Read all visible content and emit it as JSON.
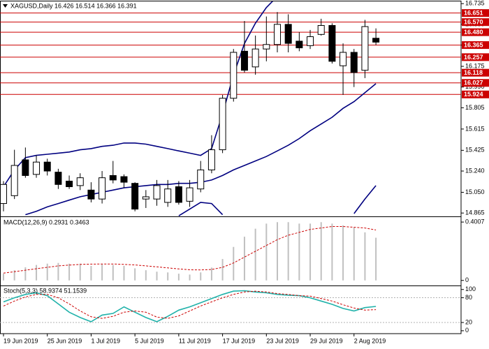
{
  "chart_data": [
    {
      "type": "candlestick",
      "title": "XAGUSD,Daily  16.426 16.514 16.366 16.391",
      "open": [
        14.95,
        15.02,
        15.34,
        15.21,
        15.32,
        15.23,
        15.15,
        15.11,
        15.07,
        14.99,
        15.2,
        15.19,
        15.13,
        14.99,
        14.99,
        14.96,
        15.1,
        14.97,
        15.08,
        15.25,
        15.43,
        15.89,
        16.31,
        16.17,
        16.33,
        16.37,
        16.55,
        16.4,
        16.36,
        16.46,
        16.54,
        16.18,
        16.3,
        16.14,
        16.426
      ],
      "high": [
        15.15,
        15.43,
        15.45,
        15.38,
        15.35,
        15.26,
        15.2,
        15.22,
        15.14,
        15.24,
        15.33,
        15.21,
        15.14,
        15.07,
        15.16,
        15.16,
        15.15,
        15.16,
        15.33,
        15.56,
        15.92,
        16.33,
        16.58,
        16.45,
        16.62,
        16.66,
        16.64,
        16.48,
        16.5,
        16.6,
        16.56,
        16.38,
        16.33,
        16.59,
        16.514
      ],
      "low": [
        14.88,
        14.99,
        15.18,
        15.18,
        15.2,
        15.08,
        15.08,
        15.07,
        14.96,
        14.95,
        15.13,
        15.09,
        14.88,
        14.91,
        14.93,
        14.92,
        14.94,
        14.92,
        15.05,
        15.22,
        15.4,
        15.86,
        16.12,
        16.1,
        16.22,
        16.3,
        16.3,
        16.31,
        16.33,
        16.45,
        16.2,
        15.92,
        15.99,
        16.07,
        16.366
      ],
      "close": [
        15.12,
        15.29,
        15.2,
        15.32,
        15.24,
        15.12,
        15.1,
        15.18,
        14.99,
        15.18,
        15.16,
        15.14,
        14.9,
        15.01,
        15.11,
        15.08,
        14.96,
        15.09,
        15.25,
        15.43,
        15.89,
        16.3,
        16.14,
        16.33,
        16.37,
        16.55,
        16.38,
        16.34,
        16.44,
        16.54,
        16.22,
        16.3,
        16.12,
        16.53,
        16.391
      ],
      "up_color": "#ffffff",
      "down_color": "#000000",
      "outline_color": "#000000",
      "series": [
        {
          "color": "#000080",
          "values": [
            15.1,
            15.25,
            15.36,
            15.38,
            15.39,
            15.4,
            15.41,
            15.43,
            15.44,
            15.46,
            15.47,
            15.49,
            15.49,
            15.48,
            15.46,
            15.44,
            15.42,
            15.4,
            15.38,
            15.44,
            15.75,
            16.1,
            16.38,
            16.56,
            16.7,
            16.8,
            null,
            null,
            null,
            null,
            null,
            null,
            null,
            null,
            null
          ]
        },
        {
          "color": "#000080",
          "values": [
            null,
            null,
            14.85,
            14.88,
            14.92,
            14.95,
            14.98,
            15.01,
            15.03,
            15.05,
            15.07,
            15.09,
            15.1,
            15.11,
            15.12,
            15.12,
            15.13,
            15.13,
            15.14,
            15.16,
            15.2,
            15.25,
            15.29,
            15.33,
            15.37,
            15.42,
            15.47,
            15.53,
            15.6,
            15.66,
            15.72,
            15.8,
            15.86,
            15.94,
            16.02
          ]
        },
        {
          "color": "#000080",
          "values": [
            null,
            null,
            null,
            null,
            null,
            null,
            null,
            null,
            null,
            null,
            null,
            null,
            null,
            null,
            null,
            null,
            14.84,
            14.9,
            14.96,
            14.95,
            14.85,
            null,
            null,
            null,
            null,
            null,
            null,
            null,
            null,
            null,
            null,
            null,
            14.86,
            14.99,
            15.11
          ]
        }
      ],
      "levels_color": "#cc0000",
      "levels": [
        16.651,
        {
          "value": 16.57,
          "label": "16.570"
        },
        {
          "value": 16.48,
          "label": "16.480"
        },
        16.365,
        16.257,
        16.118,
        16.027,
        15.924
      ],
      "ylim": [
        14.835,
        16.755
      ],
      "yticks": [
        16.735,
        {
          "value": 16.55,
          "label": "16.550"
        },
        16.365,
        16.175,
        {
          "value": 15.99,
          "label": "15.990"
        },
        15.805,
        15.615,
        15.425,
        {
          "value": 15.24,
          "label": "15.240"
        },
        {
          "value": 15.05,
          "label": "15.050"
        },
        14.865
      ]
    },
    {
      "type": "macd",
      "title": "MACD(12,26,9) 0.2931 0.3463",
      "series": [
        {
          "type": "bar",
          "color": "#c0c0c0",
          "values": [
            0.046,
            0.07,
            0.09,
            0.106,
            0.115,
            0.12,
            0.115,
            0.115,
            0.1,
            0.11,
            0.106,
            0.1,
            0.083,
            0.07,
            0.06,
            0.055,
            0.046,
            0.04,
            0.055,
            0.088,
            0.147,
            0.23,
            0.3,
            0.355,
            0.39,
            0.4,
            0.4,
            0.39,
            0.39,
            0.4,
            0.39,
            0.378,
            0.364,
            0.33,
            0.2931
          ]
        },
        {
          "type": "line",
          "color": "#cc0000",
          "dashed": true,
          "values": [
            0.05,
            0.06,
            0.07,
            0.08,
            0.09,
            0.1,
            0.105,
            0.11,
            0.112,
            0.113,
            0.113,
            0.11,
            0.106,
            0.1,
            0.093,
            0.086,
            0.079,
            0.073,
            0.072,
            0.075,
            0.09,
            0.12,
            0.16,
            0.2,
            0.24,
            0.28,
            0.31,
            0.33,
            0.35,
            0.36,
            0.37,
            0.37,
            0.365,
            0.36,
            0.3463
          ]
        }
      ],
      "ylim": [
        -0.03,
        0.43
      ],
      "yticks": [
        0.4007,
        0
      ]
    },
    {
      "type": "line",
      "title": "Stoch(5,3,3) 58.9374 51.1539",
      "categories": [
        "19 Jun 2019",
        null,
        null,
        null,
        "25 Jun 2019",
        null,
        null,
        null,
        "1 Jul 2019",
        null,
        null,
        null,
        "5 Jul 2019",
        null,
        null,
        null,
        "11 Jul 2019",
        null,
        null,
        null,
        "17 Jul 2019",
        null,
        null,
        null,
        "23 Jul 2019",
        null,
        null,
        null,
        "29 Jul 2019",
        null,
        null,
        null,
        "2 Aug 2019",
        null,
        null
      ],
      "series": [
        {
          "color": "#20b2aa",
          "values": [
            70,
            80,
            88,
            92,
            85,
            65,
            45,
            32,
            22,
            38,
            42,
            58,
            45,
            32,
            22,
            35,
            50,
            58,
            68,
            78,
            88,
            96,
            97,
            94,
            92,
            88,
            86,
            85,
            80,
            72,
            64,
            54,
            48,
            56,
            58.9374
          ]
        },
        {
          "color": "#cc0000",
          "dashed": true,
          "values": [
            60,
            72,
            82,
            88,
            88,
            80,
            65,
            48,
            34,
            30,
            35,
            45,
            48,
            45,
            33,
            30,
            36,
            48,
            60,
            70,
            80,
            88,
            94,
            96,
            94,
            90,
            88,
            85,
            84,
            78,
            72,
            63,
            55,
            50,
            51.1539
          ]
        }
      ],
      "levels": [
        80,
        20
      ],
      "ylim": [
        -7,
        108
      ],
      "yticks": [
        100,
        80,
        20,
        0
      ]
    }
  ]
}
